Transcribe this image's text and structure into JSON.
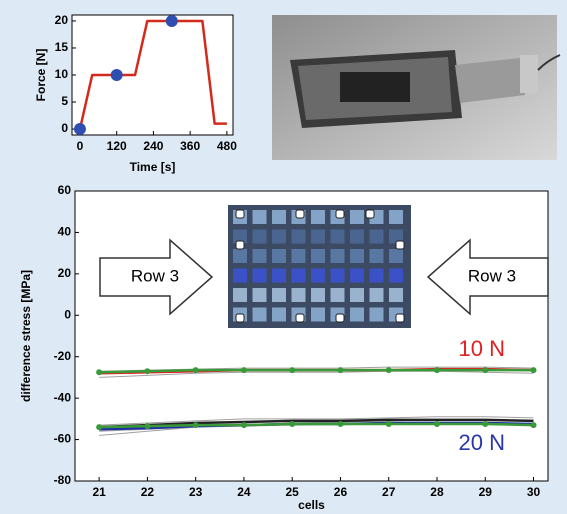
{
  "chart_data": [
    {
      "type": "line",
      "xlabel": "Time [s]",
      "ylabel": "Force [N]",
      "xlim": [
        -26,
        500
      ],
      "ylim": [
        -1.1,
        21.1
      ],
      "xticks": [
        0,
        120,
        240,
        360,
        480
      ],
      "yticks": [
        0,
        5,
        10,
        15,
        20
      ],
      "grid": false,
      "series": [
        {
          "color": "#d42a1c",
          "mode": "line",
          "x": [
            0,
            40,
            180,
            220,
            400,
            440,
            480
          ],
          "values": [
            0,
            10,
            10,
            20,
            20,
            1,
            1
          ]
        },
        {
          "color": "#2f4fb0",
          "mode": "markers",
          "x": [
            0,
            120,
            300
          ],
          "values": [
            0,
            10,
            20
          ]
        }
      ]
    },
    {
      "type": "line",
      "xlabel": "cells",
      "ylabel": "difference stress [MPa]",
      "xlim": [
        20.5,
        30.3
      ],
      "ylim": [
        -80,
        60
      ],
      "xticks": [
        21,
        22,
        23,
        24,
        25,
        26,
        27,
        28,
        29,
        30
      ],
      "yticks": [
        -80,
        -60,
        -40,
        -20,
        0,
        20,
        40,
        60
      ],
      "grid": false,
      "x": [
        21,
        22,
        23,
        24,
        25,
        26,
        27,
        28,
        29,
        30
      ],
      "series": [
        {
          "color": "#a0a0a0",
          "mode": "line",
          "values": [
            -30,
            -29,
            -28,
            -27.5,
            -27.5,
            -27.5,
            -27,
            -27,
            -27.5,
            -28
          ]
        },
        {
          "color": "#a0a0a0",
          "mode": "line",
          "values": [
            -27,
            -26.5,
            -26,
            -25.5,
            -25.5,
            -25.5,
            -25,
            -25,
            -25,
            -25.5
          ]
        },
        {
          "color": "#a0a0a0",
          "mode": "line",
          "values": [
            -58,
            -56,
            -54,
            -53,
            -52,
            -51.5,
            -51,
            -50.5,
            -50.5,
            -51
          ]
        },
        {
          "color": "#a0a0a0",
          "mode": "line",
          "values": [
            -53,
            -52,
            -51,
            -50,
            -50,
            -50,
            -49.5,
            -49,
            -49,
            -49.5
          ]
        },
        {
          "color": "#a0a0a0",
          "mode": "line",
          "values": [
            -56,
            -55,
            -54,
            -53.5,
            -53,
            -52.5,
            -52,
            -52,
            -52,
            -52.5
          ]
        },
        {
          "color": "#222222",
          "mode": "line",
          "values": [
            -54,
            -53,
            -52,
            -51.5,
            -51,
            -51,
            -50.5,
            -50.5,
            -50.5,
            -51
          ]
        },
        {
          "color": "#e02020",
          "mode": "line",
          "values": [
            -28,
            -27.5,
            -27,
            -26.5,
            -26.5,
            -26.5,
            -26.5,
            -26,
            -26,
            -26.5
          ]
        },
        {
          "color": "#3a9a3a",
          "mode": "line+markers",
          "values": [
            -27.5,
            -27,
            -26.5,
            -26.5,
            -26.5,
            -26.5,
            -26.5,
            -26.5,
            -26.5,
            -26.5
          ]
        },
        {
          "color": "#2030a0",
          "mode": "line",
          "values": [
            -55,
            -54.5,
            -53.5,
            -53,
            -52.5,
            -52.5,
            -52,
            -52,
            -52,
            -52.5
          ]
        },
        {
          "color": "#3a9a3a",
          "mode": "line+markers",
          "values": [
            -54,
            -53.5,
            -53,
            -53,
            -52.5,
            -52.5,
            -52.5,
            -52.5,
            -52.5,
            -53
          ]
        }
      ],
      "annotations": [
        {
          "text": "10 N",
          "color": "#e02020"
        },
        {
          "text": "20 N",
          "color": "#2838a8"
        },
        {
          "text": "Row 3",
          "color": "#000000"
        },
        {
          "text": "Row 3",
          "color": "#000000"
        }
      ]
    }
  ]
}
